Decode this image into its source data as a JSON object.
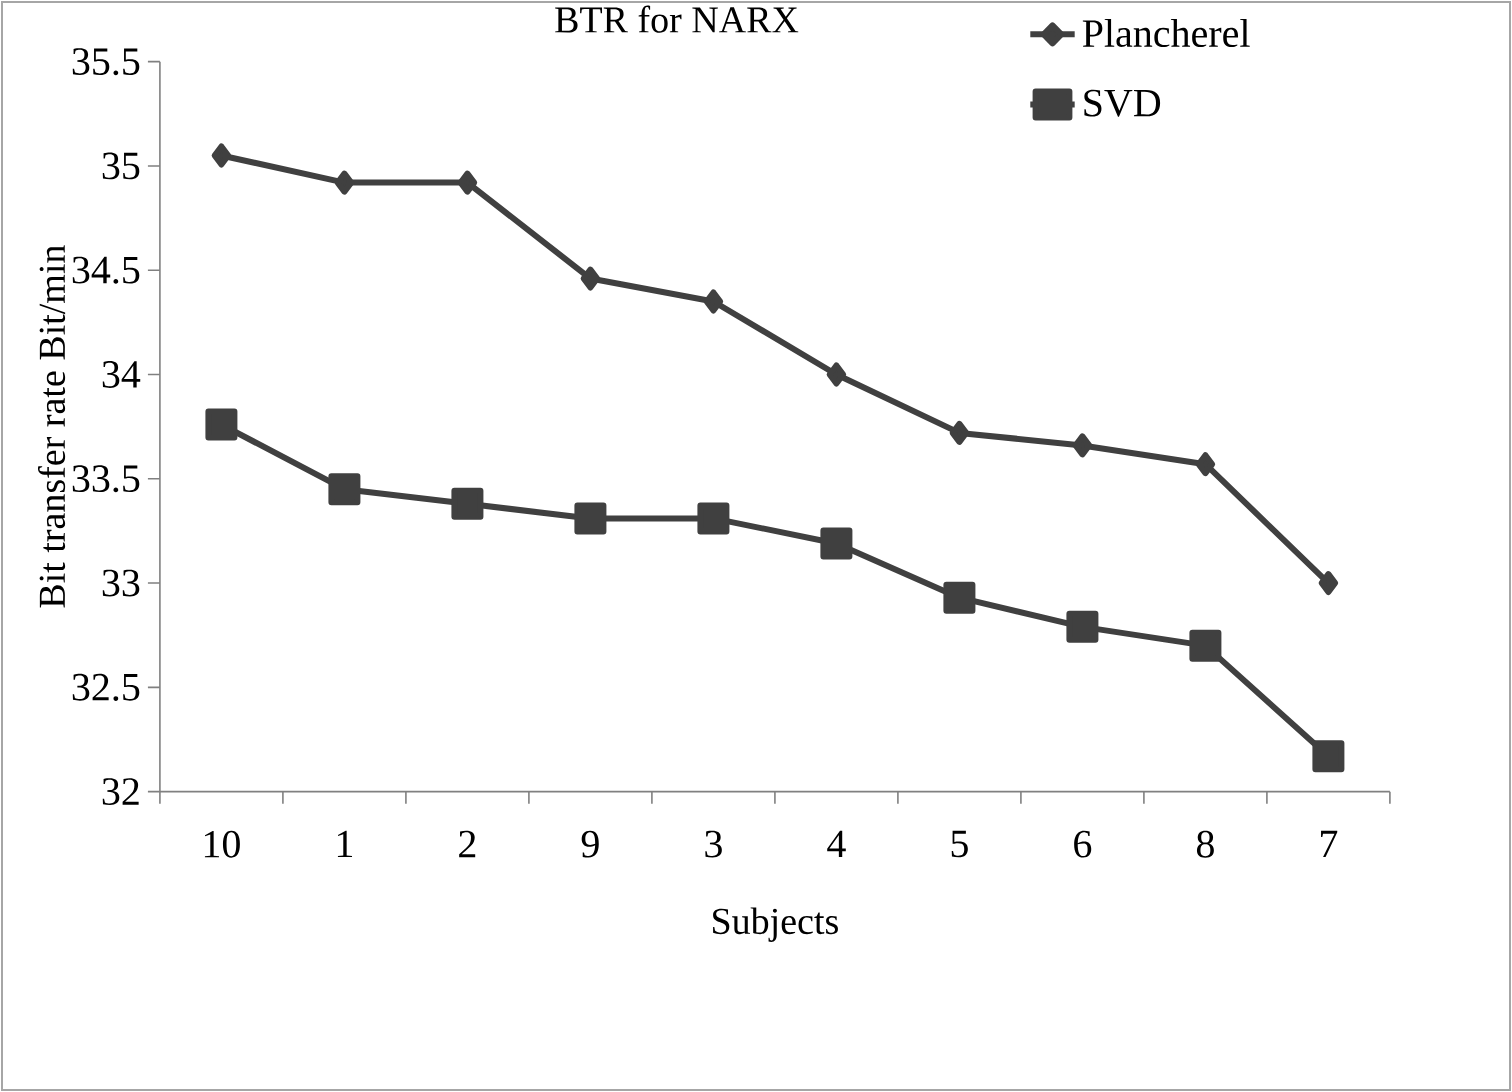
{
  "chart_data": {
    "type": "line",
    "title": "BTR for NARX",
    "xlabel": "Subjects",
    "ylabel": "Bit transfer rate Bit/min",
    "categories": [
      "10",
      "1",
      "2",
      "9",
      "3",
      "4",
      "5",
      "6",
      "8",
      "7"
    ],
    "ylim": [
      32,
      35.5
    ],
    "yticks": [
      32,
      32.5,
      33,
      33.5,
      34,
      34.5,
      35,
      35.5
    ],
    "legend": "top right",
    "line_style": "solid",
    "series": [
      {
        "name": "Plancherel",
        "color": "#404040",
        "marker": "diamond",
        "values": [
          35.05,
          34.92,
          34.92,
          34.46,
          34.35,
          34.0,
          33.72,
          33.66,
          33.57,
          33.0
        ]
      },
      {
        "name": "SVD",
        "color": "#404040",
        "marker": "square",
        "values": [
          33.76,
          33.45,
          33.38,
          33.31,
          33.31,
          33.19,
          32.93,
          32.79,
          32.7,
          32.17
        ]
      }
    ]
  }
}
